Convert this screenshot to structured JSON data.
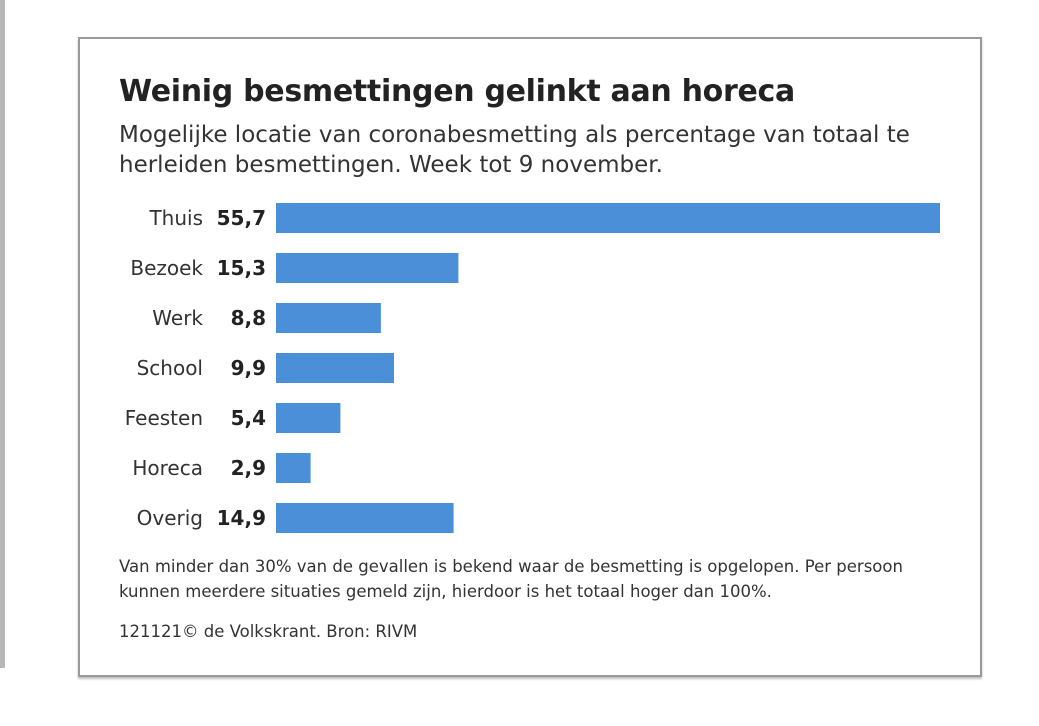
{
  "chart_data": {
    "type": "bar",
    "orientation": "horizontal",
    "title": "Weinig besmettingen gelinkt aan horeca",
    "subtitle": "Mogelijke locatie van coronabesmetting als percentage van totaal te herleiden besmettingen. Week tot 9 november.",
    "categories": [
      "Thuis",
      "Bezoek",
      "Werk",
      "School",
      "Feesten",
      "Horeca",
      "Overig"
    ],
    "values": [
      55.7,
      15.3,
      8.8,
      9.9,
      5.4,
      2.9,
      14.9
    ],
    "value_labels": [
      "55,7",
      "15,3",
      "8,8",
      "9,9",
      "5,4",
      "2,9",
      "14,9"
    ],
    "xlim": [
      0,
      55.7
    ],
    "grid": false,
    "legend": "none",
    "bar_color": "#4a8fd8",
    "note": "Van minder dan 30% van de gevallen is bekend waar de besmetting is opgelopen. Per persoon kunnen meerdere situaties gemeld zijn, hierdoor is het totaal hoger dan 100%.",
    "credit": "121121© de Volkskrant. Bron: RIVM"
  }
}
